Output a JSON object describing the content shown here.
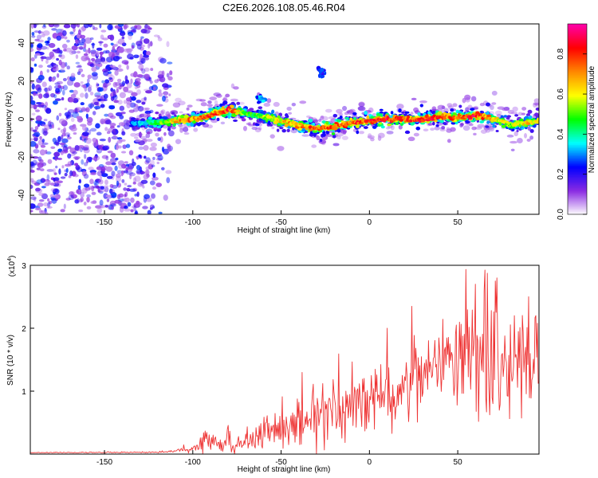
{
  "title": "C2E6.2026.108.05.46.R04",
  "chart_data": [
    {
      "type": "heatmap",
      "panel": "spectrogram",
      "xlabel": "Height of straight line (km)",
      "ylabel": "Frequency (Hz)",
      "xlim": [
        -192,
        96
      ],
      "ylim": [
        -50,
        50
      ],
      "x_ticks": [
        -150,
        -100,
        -50,
        0,
        50
      ],
      "y_ticks": [
        -40,
        -20,
        0,
        20,
        40
      ],
      "colorbar": {
        "label": "Normalized spectral amplitude",
        "range": [
          0,
          0.95
        ],
        "ticks": [
          0.0,
          0.2,
          0.4,
          0.6,
          0.8
        ],
        "tick_labels": [
          "0.0",
          "0.2",
          "0.4",
          "0.6",
          "0.8"
        ],
        "colormap": [
          "#ffffff",
          "#8a2be2",
          "#0000ff",
          "#00ffff",
          "#00ff00",
          "#ffff00",
          "#ff8800",
          "#ff0000",
          "#ff00aa"
        ]
      },
      "noise_region_km": [
        -192,
        -112
      ],
      "signal_trace": {
        "x": [
          -135,
          -120,
          -110,
          -100,
          -90,
          -80,
          -70,
          -60,
          -50,
          -40,
          -30,
          -20,
          -10,
          0,
          10,
          20,
          30,
          40,
          50,
          60,
          70,
          80,
          90,
          96
        ],
        "freq": [
          -2,
          -2,
          -1,
          0,
          2,
          5,
          3,
          1,
          -1,
          -3,
          -5,
          -4,
          -2,
          -1,
          0,
          0,
          0,
          1,
          1,
          2,
          0,
          -3,
          -2,
          -1
        ],
        "amplitude": [
          0.3,
          0.5,
          0.7,
          0.8,
          0.85,
          0.9,
          0.5,
          0.6,
          0.7,
          0.75,
          0.85,
          0.8,
          0.85,
          0.9,
          0.9,
          0.85,
          0.9,
          0.85,
          0.8,
          0.9,
          0.7,
          0.6,
          0.7,
          0.6
        ]
      },
      "isolated_blobs": [
        {
          "x": -62,
          "freq": 10,
          "amplitude": 0.35
        },
        {
          "x": -27,
          "freq": 25,
          "amplitude": 0.3
        }
      ]
    },
    {
      "type": "line",
      "panel": "snr",
      "xlabel": "Height of straight line (km)",
      "ylabel": "SNR (10 * v/v)",
      "y_multiplier": "(x10",
      "y_multiplier_exp": "4",
      "y_multiplier_close": ")",
      "xlim": [
        -192,
        96
      ],
      "ylim": [
        0,
        3
      ],
      "x_ticks": [
        -150,
        -100,
        -50,
        0,
        50
      ],
      "y_ticks": [
        1,
        2,
        3
      ],
      "series_color": "#ee3333",
      "envelope": {
        "x": [
          -192,
          -120,
          -110,
          -100,
          -95,
          -90,
          -85,
          -80,
          -75,
          -70,
          -60,
          -50,
          -40,
          -30,
          -20,
          -10,
          0,
          10,
          20,
          30,
          40,
          50,
          60,
          70,
          80,
          90,
          96
        ],
        "mean": [
          0.02,
          0.02,
          0.03,
          0.08,
          0.18,
          0.25,
          0.15,
          0.22,
          0.12,
          0.2,
          0.3,
          0.45,
          0.5,
          0.55,
          0.7,
          0.8,
          0.85,
          0.95,
          1.1,
          1.3,
          1.45,
          1.5,
          1.55,
          1.6,
          1.55,
          1.5,
          1.45
        ],
        "spread": [
          0.005,
          0.01,
          0.02,
          0.06,
          0.15,
          0.2,
          0.15,
          0.25,
          0.1,
          0.25,
          0.3,
          0.35,
          0.4,
          0.45,
          0.5,
          0.55,
          0.55,
          0.55,
          0.6,
          0.6,
          0.65,
          0.75,
          0.9,
          1.0,
          1.1,
          0.9,
          0.8
        ]
      },
      "peaks": [
        {
          "x": 10,
          "y": 2.0
        },
        {
          "x": 24,
          "y": 2.35
        },
        {
          "x": 60,
          "y": 2.7
        },
        {
          "x": 65,
          "y": 2.6
        },
        {
          "x": 72,
          "y": 2.8
        },
        {
          "x": 82,
          "y": 2.2
        },
        {
          "x": 90,
          "y": 2.5
        },
        {
          "x": 94,
          "y": 2.2
        }
      ]
    }
  ]
}
